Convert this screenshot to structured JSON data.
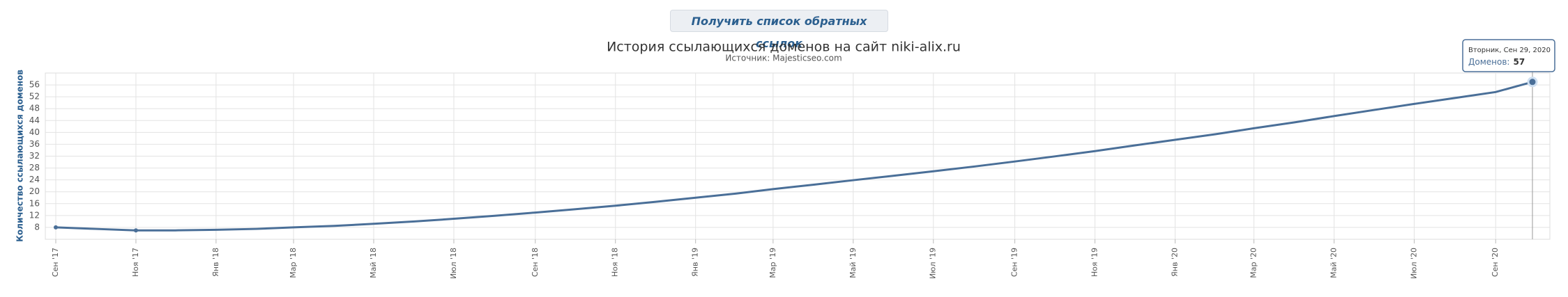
{
  "button": "Получить список обратных ссылок",
  "chart_data": {
    "type": "line",
    "title": "История ссылающихся доменов на сайт niki-alix.ru",
    "subtitle": "Источник: Majesticseo.com",
    "y_label": "Количество ссылающихся доменов",
    "x": [
      "2017-09",
      "2017-10",
      "2017-11",
      "2017-12",
      "2018-01",
      "2018-02",
      "2018-03",
      "2018-04",
      "2018-05",
      "2018-06",
      "2018-07",
      "2018-08",
      "2018-09",
      "2018-10",
      "2018-11",
      "2018-12",
      "2019-01",
      "2019-02",
      "2019-03",
      "2019-04",
      "2019-05",
      "2019-06",
      "2019-07",
      "2019-08",
      "2019-09",
      "2019-10",
      "2019-11",
      "2019-12",
      "2020-01",
      "2020-02",
      "2020-03",
      "2020-04",
      "2020-05",
      "2020-06",
      "2020-07",
      "2020-08",
      "2020-09",
      "2020-09-29"
    ],
    "series": [
      {
        "name": "Доменов",
        "color": "#4a6f98",
        "values": [
          8,
          7.5,
          7,
          7,
          7.2,
          7.5,
          8,
          8.5,
          9.2,
          10,
          10.9,
          11.9,
          13,
          14.1,
          15.3,
          16.6,
          18,
          19.4,
          20.9,
          22.4,
          23.9,
          25.4,
          26.9,
          28.5,
          30.2,
          31.9,
          33.7,
          35.6,
          37.5,
          39.4,
          41.4,
          43.4,
          45.5,
          47.6,
          49.6,
          51.6,
          53.6,
          57
        ]
      }
    ],
    "ylim": [
      4,
      60
    ],
    "yticks": [
      8,
      12,
      16,
      20,
      24,
      28,
      32,
      36,
      40,
      44,
      48,
      52,
      56
    ],
    "xticks": [
      {
        "value": "2017-09",
        "label": "Сен '17"
      },
      {
        "value": "2017-11",
        "label": "Ноя '17"
      },
      {
        "value": "2018-01",
        "label": "Янв '18"
      },
      {
        "value": "2018-03",
        "label": "Мар '18"
      },
      {
        "value": "2018-05",
        "label": "Май '18"
      },
      {
        "value": "2018-07",
        "label": "Июл '18"
      },
      {
        "value": "2018-09",
        "label": "Сен '18"
      },
      {
        "value": "2018-11",
        "label": "Ноя '18"
      },
      {
        "value": "2019-01",
        "label": "Янв '19"
      },
      {
        "value": "2019-03",
        "label": "Мар '19"
      },
      {
        "value": "2019-05",
        "label": "Май '19"
      },
      {
        "value": "2019-07",
        "label": "Июл '19"
      },
      {
        "value": "2019-09",
        "label": "Сен '19"
      },
      {
        "value": "2019-11",
        "label": "Ноя '19"
      },
      {
        "value": "2020-01",
        "label": "Янв '20"
      },
      {
        "value": "2020-03",
        "label": "Мар '20"
      },
      {
        "value": "2020-05",
        "label": "Май '20"
      },
      {
        "value": "2020-07",
        "label": "Июл '20"
      },
      {
        "value": "2020-09",
        "label": "Сен '20"
      }
    ],
    "grid": true,
    "tooltip": {
      "date": "Вторник, Сен 29, 2020",
      "label": "Доменов:"
    }
  }
}
